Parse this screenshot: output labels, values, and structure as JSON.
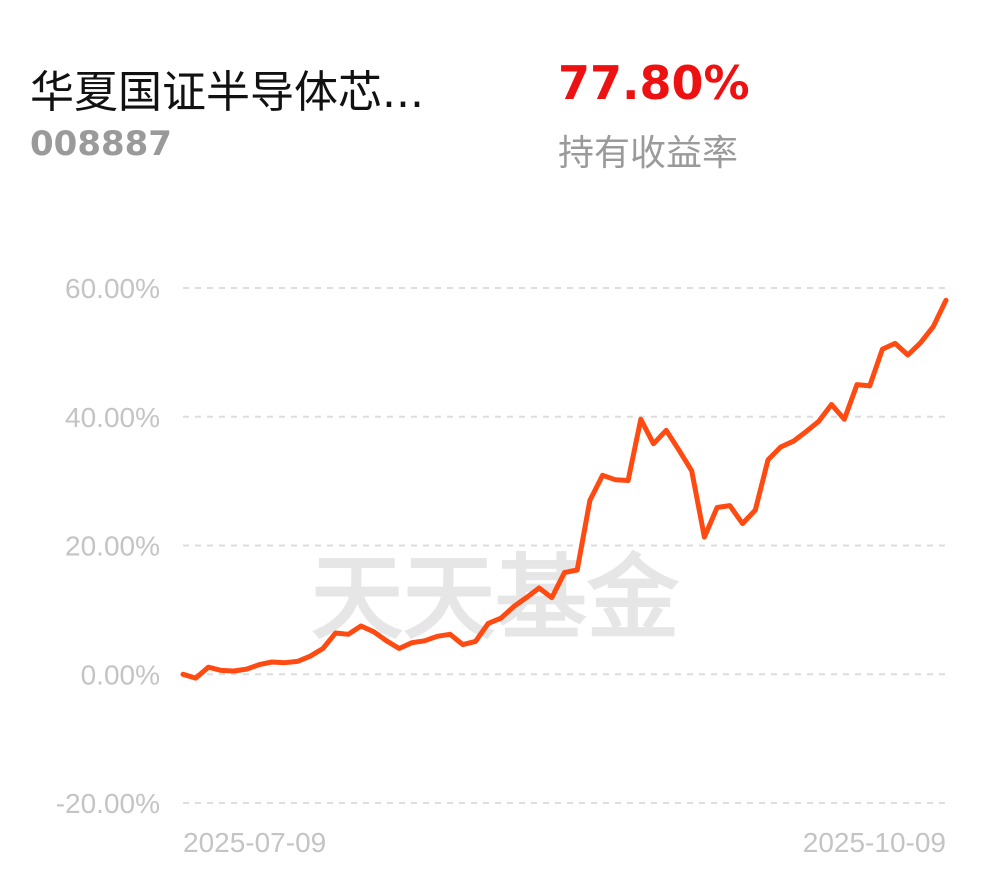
{
  "header": {
    "fund_name": "华夏国证半导体芯...",
    "fund_code": "008887",
    "holding_yield": "77.80%",
    "holding_yield_label": "持有收益率"
  },
  "watermark": "天天基金",
  "colors": {
    "line": "#ff4a12",
    "yield": "#ee1111",
    "grid": "#dddddd",
    "muted_text": "#9a9a9a"
  },
  "chart_data": {
    "type": "line",
    "x_start": "2025-07-09",
    "x_end": "2025-10-09",
    "x_tick_labels": [
      "2025-07-09",
      "2025-10-09"
    ],
    "y_tick_labels": [
      "60.00%",
      "40.00%",
      "20.00%",
      "0.00%",
      "-20.00%"
    ],
    "y_ticks": [
      60,
      40,
      20,
      0,
      -20
    ],
    "ylim": [
      -20,
      60
    ],
    "grid": true,
    "series": [
      {
        "values": [
          0.0,
          -0.6,
          1.1,
          0.6,
          0.5,
          0.8,
          1.5,
          1.9,
          1.8,
          2.0,
          2.8,
          4.0,
          6.4,
          6.2,
          7.5,
          6.6,
          5.2,
          4.0,
          4.9,
          5.2,
          5.9,
          6.2,
          4.6,
          5.1,
          7.9,
          8.7,
          10.5,
          11.9,
          13.4,
          11.9,
          15.8,
          16.2,
          27.0,
          30.9,
          30.2,
          30.1,
          39.6,
          35.8,
          37.9,
          34.8,
          31.6,
          21.3,
          25.9,
          26.2,
          23.4,
          25.5,
          33.3,
          35.3,
          36.2,
          37.7,
          39.3,
          41.9,
          39.6,
          45.0,
          44.8,
          50.5,
          51.4,
          49.6,
          51.5,
          54.0,
          58.1
        ]
      }
    ]
  }
}
